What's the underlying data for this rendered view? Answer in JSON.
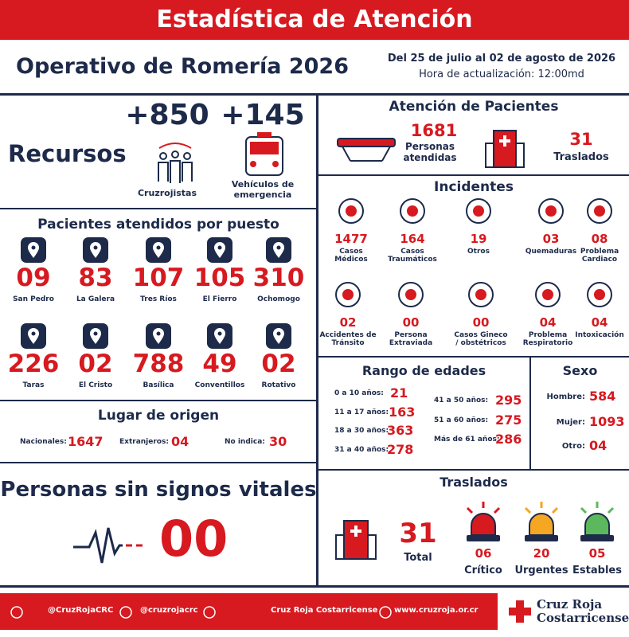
{
  "header": {
    "title": "Estadística de Atención"
  },
  "operation": {
    "title": "Operativo de Romería 2026",
    "dates": "Del 25 de julio al 02 de agosto de 2026",
    "update": "Hora de actualización: 12:00md"
  },
  "resources": {
    "title": "Recursos",
    "items": [
      {
        "value": "+850",
        "label": "Cruzrojistas"
      },
      {
        "value": "+145",
        "label": "Vehículos de emergencia"
      }
    ]
  },
  "patient_care": {
    "title": "Atención de Pacientes",
    "attended": {
      "value": "1681",
      "label": "Personas atendidas"
    },
    "transferred": {
      "value": "31",
      "label": "Traslados"
    }
  },
  "incidents": {
    "title": "Incidentes",
    "items": [
      {
        "value": "1477",
        "label": "Casos Médicos"
      },
      {
        "value": "164",
        "label": "Casos Traumáticos"
      },
      {
        "value": "19",
        "label": "Otros"
      },
      {
        "value": "03",
        "label": "Quemaduras"
      },
      {
        "value": "08",
        "label": "Problema Cardiaco"
      },
      {
        "value": "02",
        "label": "Accidentes de Tránsito"
      },
      {
        "value": "00",
        "label": "Persona Extraviada"
      },
      {
        "value": "00",
        "label": "Casos Gineco / obstétricos"
      },
      {
        "value": "04",
        "label": "Problema Respiratorio"
      },
      {
        "value": "04",
        "label": "Intoxicación"
      }
    ]
  },
  "posts": {
    "title": "Pacientes atendidos por puesto",
    "items": [
      {
        "value": "09",
        "label": "San Pedro"
      },
      {
        "value": "83",
        "label": "La Galera"
      },
      {
        "value": "107",
        "label": "Tres Ríos"
      },
      {
        "value": "105",
        "label": "El Fierro"
      },
      {
        "value": "310",
        "label": "Ochomogo"
      },
      {
        "value": "226",
        "label": "Taras"
      },
      {
        "value": "02",
        "label": "El Cristo"
      },
      {
        "value": "788",
        "label": "Basílica"
      },
      {
        "value": "49",
        "label": "Conventillos"
      },
      {
        "value": "02",
        "label": "Rotativo"
      }
    ]
  },
  "origin": {
    "title": "Lugar de origen",
    "items": [
      {
        "label": "Nacionales:",
        "value": "1647"
      },
      {
        "label": "Extranjeros:",
        "value": "04"
      },
      {
        "label": "No indica:",
        "value": "30"
      }
    ]
  },
  "ages": {
    "title": "Rango de edades",
    "items": [
      {
        "label": "0 a 10 años:",
        "value": "21"
      },
      {
        "label": "11 a 17 años:",
        "value": "163"
      },
      {
        "label": "18 a 30 años:",
        "value": "363"
      },
      {
        "label": "31 a 40 años:",
        "value": "278"
      },
      {
        "label": "41 a 50 años:",
        "value": "295"
      },
      {
        "label": "51 a 60 años:",
        "value": "275"
      },
      {
        "label": "Más de 61 años:",
        "value": "286"
      }
    ]
  },
  "sex": {
    "title": "Sexo",
    "items": [
      {
        "label": "Hombre:",
        "value": "584"
      },
      {
        "label": "Mujer:",
        "value": "1093"
      },
      {
        "label": "Otro:",
        "value": "04"
      }
    ]
  },
  "vital": {
    "title": "Personas sin signos vitales",
    "value": "00"
  },
  "transfers": {
    "title": "Traslados",
    "total": {
      "value": "31",
      "label": "Total"
    },
    "items": [
      {
        "value": "06",
        "label": "Crítico"
      },
      {
        "value": "20",
        "label": "Urgentes"
      },
      {
        "value": "05",
        "label": "Estables"
      }
    ]
  },
  "footer": {
    "social": [
      "@CruzRojaCRC",
      "@cruzrojacrc",
      "Cruz Roja Costarricense",
      "www.cruzroja.or.cr"
    ],
    "logo": [
      "Cruz Roja",
      "Costarricense"
    ]
  }
}
